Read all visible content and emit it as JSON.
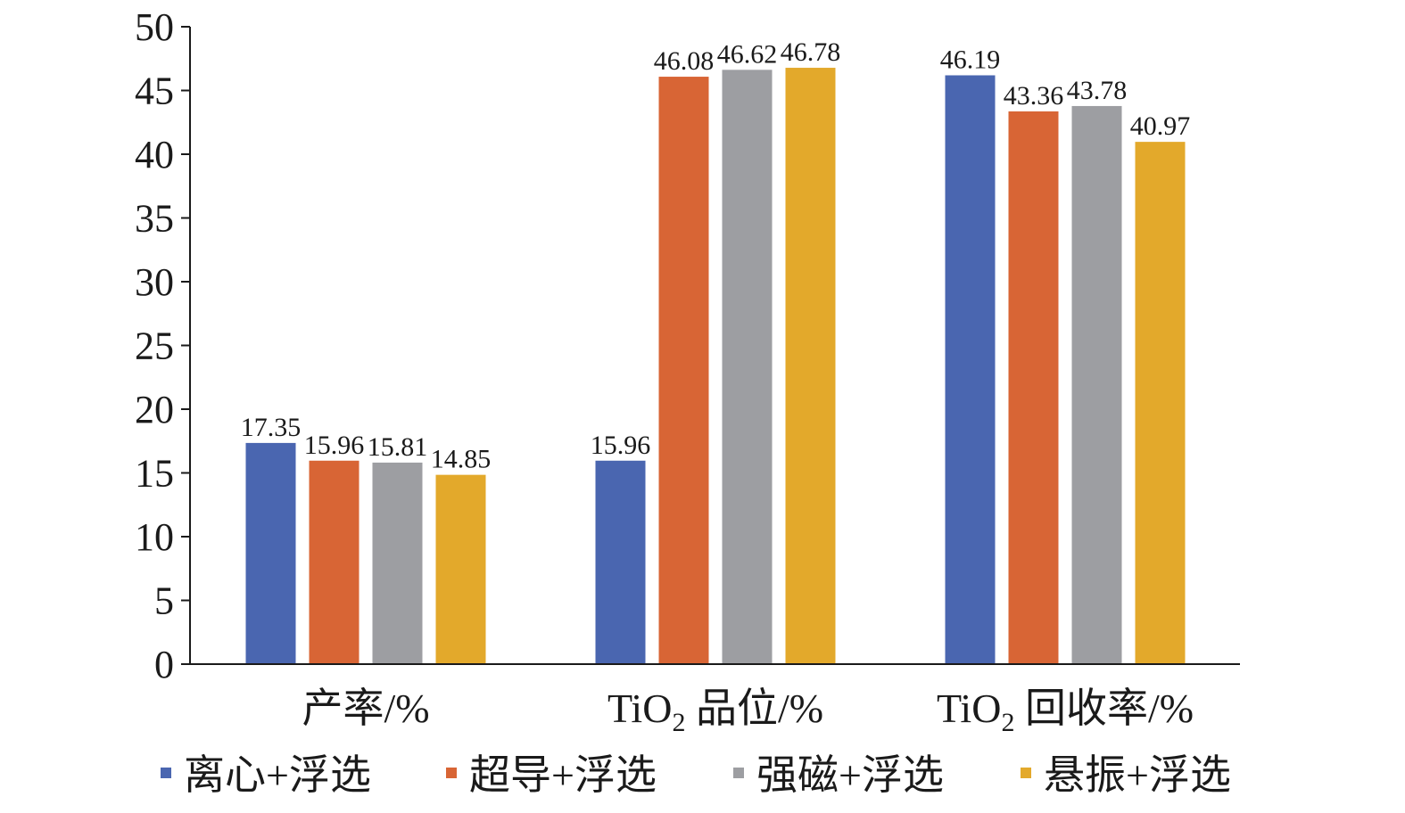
{
  "chart_data": {
    "type": "bar",
    "categories": [
      {
        "prefix": "",
        "sub": "",
        "suffix": "产率/%"
      },
      {
        "prefix": "TiO",
        "sub": "2",
        "suffix": " 品位/%"
      },
      {
        "prefix": "TiO",
        "sub": "2",
        "suffix": " 回收率/%"
      }
    ],
    "series": [
      {
        "name": "离心+浮选",
        "color": "#4a66b0",
        "values": [
          17.35,
          15.96,
          46.19
        ],
        "labels": [
          "17.35",
          "15.96",
          "46.19"
        ]
      },
      {
        "name": "超导+浮选",
        "color": "#d86535",
        "values": [
          15.96,
          46.08,
          43.36
        ],
        "labels": [
          "15.96",
          "46.08",
          "43.36"
        ]
      },
      {
        "name": "强磁+浮选",
        "color": "#9d9ea2",
        "values": [
          15.81,
          46.62,
          43.78
        ],
        "labels": [
          "15.81",
          "46.62",
          "43.78"
        ]
      },
      {
        "name": "悬振+浮选",
        "color": "#e3a92b",
        "values": [
          14.85,
          46.78,
          40.97
        ],
        "labels": [
          "14.85",
          "46.78",
          "40.97"
        ]
      }
    ],
    "ylim": [
      0,
      50
    ],
    "yticks": [
      "0",
      "5",
      "10",
      "15",
      "20",
      "25",
      "30",
      "35",
      "40",
      "45",
      "50"
    ],
    "legend_position": "bottom",
    "grid": false
  }
}
